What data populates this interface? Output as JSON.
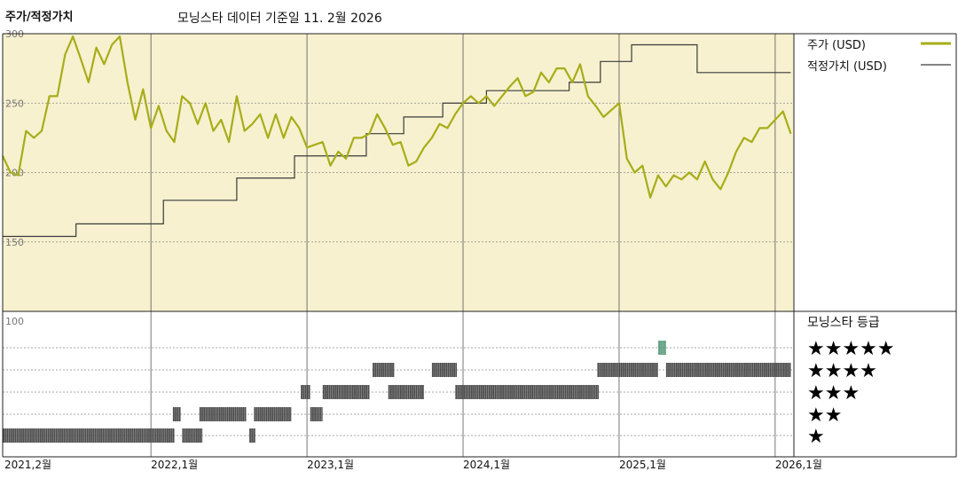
{
  "header": {
    "left_title": "주가/적정가치",
    "center_title": "모닝스타 데이터 기준일 11. 2월 2026"
  },
  "colors": {
    "panel_bg": "#f7f1cf",
    "price_line": "#a7ad19",
    "fair_value_line": "#3a3a3a",
    "rating_bar": "#2e2e2e",
    "rating_bar_5": "#3f8a66",
    "grid": "#8a8a8a"
  },
  "chart_data": {
    "type": "line",
    "x_tick_labels": [
      "2021,2월",
      "2022,1월",
      "2023,1월",
      "2024,1월",
      "2025,1월",
      "2026,1월"
    ],
    "x_ticks": [
      2021.08,
      2022.0,
      2023.0,
      2024.0,
      2025.0,
      2026.0
    ],
    "xlim": [
      2021.05,
      2026.12
    ],
    "price_panel": {
      "ylim": [
        100,
        300
      ],
      "y_tick_labels": [
        "300",
        "250",
        "200",
        "150"
      ],
      "y_ticks": [
        300,
        250,
        200,
        150
      ],
      "series": [
        {
          "name": "주가 (USD)",
          "x": [
            2021.05,
            2021.1,
            2021.15,
            2021.2,
            2021.25,
            2021.3,
            2021.35,
            2021.4,
            2021.45,
            2021.5,
            2021.55,
            2021.6,
            2021.65,
            2021.7,
            2021.75,
            2021.8,
            2021.85,
            2021.9,
            2021.95,
            2022.0,
            2022.05,
            2022.1,
            2022.15,
            2022.2,
            2022.25,
            2022.3,
            2022.35,
            2022.4,
            2022.45,
            2022.5,
            2022.55,
            2022.6,
            2022.65,
            2022.7,
            2022.75,
            2022.8,
            2022.85,
            2022.9,
            2022.95,
            2023.0,
            2023.05,
            2023.1,
            2023.15,
            2023.2,
            2023.25,
            2023.3,
            2023.35,
            2023.4,
            2023.45,
            2023.5,
            2023.55,
            2023.6,
            2023.65,
            2023.7,
            2023.75,
            2023.8,
            2023.85,
            2023.9,
            2023.95,
            2024.0,
            2024.05,
            2024.1,
            2024.15,
            2024.2,
            2024.25,
            2024.3,
            2024.35,
            2024.4,
            2024.45,
            2024.5,
            2024.55,
            2024.6,
            2024.65,
            2024.7,
            2024.75,
            2024.8,
            2024.85,
            2024.9,
            2024.95,
            2025.0,
            2025.05,
            2025.1,
            2025.15,
            2025.2,
            2025.25,
            2025.3,
            2025.35,
            2025.4,
            2025.45,
            2025.5,
            2025.55,
            2025.6,
            2025.65,
            2025.7,
            2025.75,
            2025.8,
            2025.85,
            2025.9,
            2025.95,
            2026.0,
            2026.05,
            2026.1
          ],
          "values": [
            212,
            200,
            198,
            230,
            225,
            230,
            255,
            255,
            285,
            298,
            282,
            265,
            290,
            278,
            292,
            298,
            265,
            238,
            260,
            232,
            248,
            230,
            222,
            255,
            250,
            235,
            250,
            230,
            238,
            222,
            255,
            230,
            235,
            242,
            225,
            242,
            225,
            240,
            232,
            218,
            220,
            222,
            205,
            215,
            210,
            225,
            225,
            228,
            242,
            232,
            220,
            222,
            205,
            208,
            218,
            225,
            235,
            232,
            242,
            250,
            255,
            250,
            255,
            248,
            255,
            262,
            268,
            255,
            258,
            272,
            265,
            275,
            275,
            265,
            278,
            255,
            248,
            240,
            245,
            250,
            210,
            200,
            205,
            182,
            198,
            190,
            198,
            195,
            200,
            195,
            208,
            195,
            188,
            200,
            215,
            225,
            222,
            232,
            232,
            238,
            244,
            228
          ]
        },
        {
          "name": "적정가치 (USD)",
          "step": true,
          "x": [
            2021.05,
            2021.52,
            2022.08,
            2022.55,
            2022.92,
            2023.38,
            2023.62,
            2023.87,
            2024.15,
            2024.68,
            2024.88,
            2025.08,
            2025.5,
            2026.1
          ],
          "values": [
            154,
            163,
            180,
            196,
            212,
            228,
            240,
            250,
            259,
            265,
            280,
            292,
            272,
            272
          ]
        }
      ]
    },
    "rating_panel": {
      "title": "모닝스타 등급",
      "top_label": "100",
      "legend_stars": [
        "★★★★★",
        "★★★★",
        "★★★",
        "★★",
        "★"
      ],
      "segments": [
        {
          "stars": 1,
          "x0": 2021.05,
          "x1": 2022.15
        },
        {
          "stars": 1,
          "x0": 2022.2,
          "x1": 2022.33
        },
        {
          "stars": 1,
          "x0": 2022.63,
          "x1": 2022.67
        },
        {
          "stars": 2,
          "x0": 2022.14,
          "x1": 2022.19
        },
        {
          "stars": 2,
          "x0": 2022.31,
          "x1": 2022.61
        },
        {
          "stars": 2,
          "x0": 2022.66,
          "x1": 2022.9
        },
        {
          "stars": 2,
          "x0": 2023.02,
          "x1": 2023.1
        },
        {
          "stars": 3,
          "x0": 2022.96,
          "x1": 2023.02
        },
        {
          "stars": 3,
          "x0": 2023.1,
          "x1": 2023.4
        },
        {
          "stars": 3,
          "x0": 2023.52,
          "x1": 2023.75
        },
        {
          "stars": 3,
          "x0": 2023.95,
          "x1": 2024.87
        },
        {
          "stars": 4,
          "x0": 2023.42,
          "x1": 2023.56
        },
        {
          "stars": 4,
          "x0": 2023.8,
          "x1": 2023.96
        },
        {
          "stars": 4,
          "x0": 2024.86,
          "x1": 2025.25
        },
        {
          "stars": 4,
          "x0": 2025.3,
          "x1": 2026.1
        },
        {
          "stars": 5,
          "x0": 2025.25,
          "x1": 2025.3
        }
      ]
    }
  }
}
